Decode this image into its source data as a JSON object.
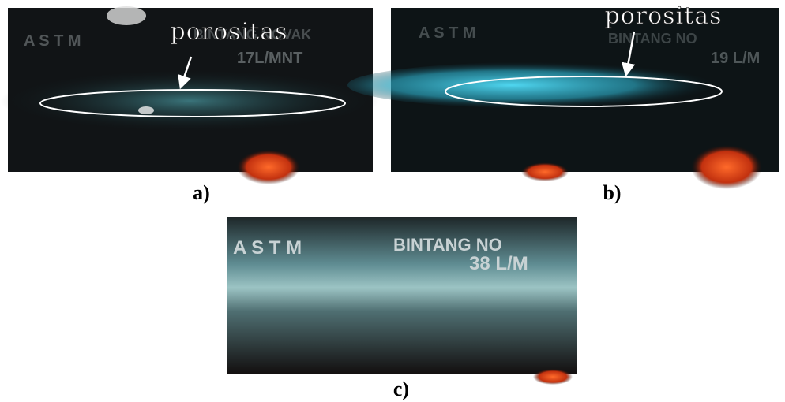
{
  "panels": [
    {
      "label": "a)",
      "annotation": "porositas",
      "photo_text": [
        "A S T M",
        "BINTANG NOVAK",
        "17L/MNT"
      ]
    },
    {
      "label": "b)",
      "annotation": "porositas",
      "photo_text": [
        "A S T M",
        "BINTANG NO",
        "19 L/M"
      ]
    },
    {
      "label": "c)",
      "photo_text": [
        "A S T M",
        "BINTANG NO",
        "38 L/M"
      ]
    }
  ]
}
